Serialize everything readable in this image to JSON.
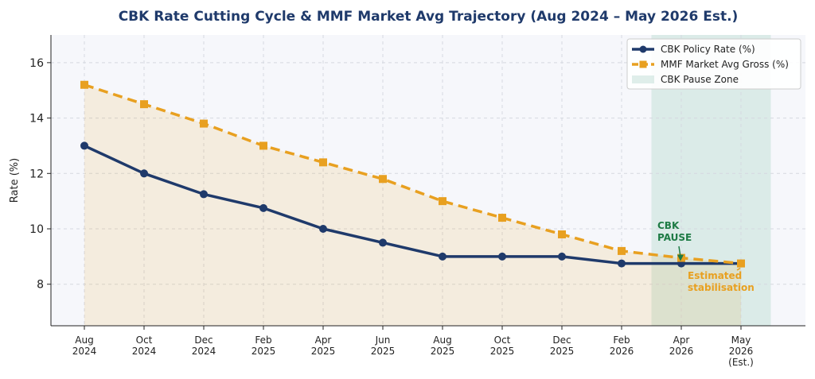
{
  "chart_data": {
    "type": "line",
    "title": "CBK Rate Cutting Cycle & MMF Market Avg Trajectory (Aug 2024 – May 2026 Est.)",
    "xlabel": "",
    "ylabel": "Rate (%)",
    "ylim": [
      6.5,
      17
    ],
    "yticks": [
      8,
      10,
      12,
      14,
      16
    ],
    "grid": true,
    "legend_position": "top-right",
    "categories": [
      [
        "Aug",
        "2024"
      ],
      [
        "Oct",
        "2024"
      ],
      [
        "Dec",
        "2024"
      ],
      [
        "Feb",
        "2025"
      ],
      [
        "Apr",
        "2025"
      ],
      [
        "Jun",
        "2025"
      ],
      [
        "Aug",
        "2025"
      ],
      [
        "Oct",
        "2025"
      ],
      [
        "Dec",
        "2025"
      ],
      [
        "Feb",
        "2026"
      ],
      [
        "Apr",
        "2026"
      ],
      [
        "May",
        "2026",
        "(Est.)"
      ]
    ],
    "series": [
      {
        "name": "CBK Policy Rate (%)",
        "values": [
          13.0,
          12.0,
          11.25,
          10.75,
          10.0,
          9.5,
          9.0,
          9.0,
          9.0,
          8.75,
          8.75,
          8.75
        ],
        "color": "#1f3a6b",
        "style": "solid",
        "marker": "circle"
      },
      {
        "name": "MMF Market Avg Gross (%)",
        "values": [
          15.2,
          14.5,
          13.8,
          13.0,
          12.4,
          11.8,
          11.0,
          10.4,
          9.8,
          9.2,
          8.95,
          8.75
        ],
        "color": "#e8a020",
        "style": "dashed",
        "marker": "square"
      }
    ],
    "shaded_region": {
      "name": "CBK Pause Zone",
      "from_index": 9.5,
      "to_index": 11.5,
      "color": "#c9e2dc"
    },
    "annotations": [
      {
        "lines": [
          "CBK",
          "PAUSE"
        ],
        "color": "#1e7b45",
        "point_index": 10,
        "point_value": 8.75
      },
      {
        "lines": [
          "Estimated",
          "stabilisation"
        ],
        "color": "#e8a020",
        "point_index": 11,
        "point_value": 8.75
      }
    ]
  }
}
